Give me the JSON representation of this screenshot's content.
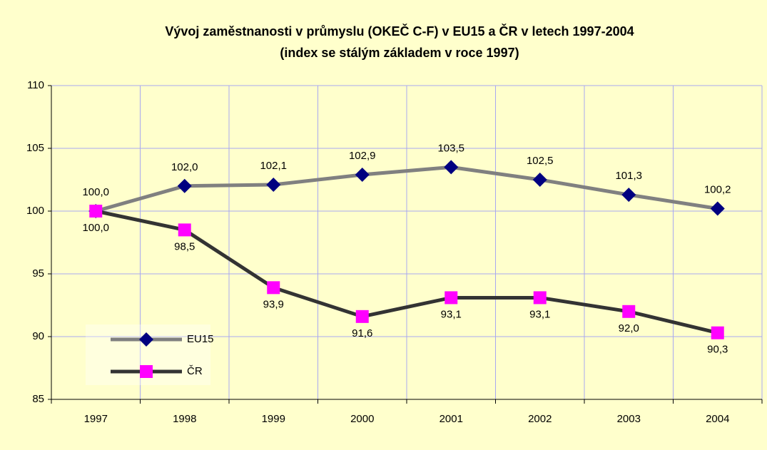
{
  "chart_data": {
    "type": "line",
    "title": "Vývoj zaměstnanosti v průmyslu (OKEČ C-F) v EU15 a ČR v letech 1997-2004",
    "subtitle": "(index se stálým základem v roce 1997)",
    "categories": [
      "1997",
      "1998",
      "1999",
      "2000",
      "2001",
      "2002",
      "2003",
      "2004"
    ],
    "series": [
      {
        "name": "EU15",
        "color": "#000080",
        "line_color": "#808080",
        "marker": "diamond",
        "values": [
          100.0,
          102.0,
          102.1,
          102.9,
          103.5,
          102.5,
          101.3,
          100.2
        ],
        "value_labels": [
          "100,0",
          "102,0",
          "102,1",
          "102,9",
          "103,5",
          "102,5",
          "101,3",
          "100,2"
        ]
      },
      {
        "name": "ČR",
        "color": "#ff00ff",
        "line_color": "#333333",
        "marker": "square",
        "values": [
          100.0,
          98.5,
          93.9,
          91.6,
          93.1,
          93.1,
          92.0,
          90.3
        ],
        "value_labels": [
          "100,0",
          "98,5",
          "93,9",
          "91,6",
          "93,1",
          "93,1",
          "92,0",
          "90,3"
        ]
      }
    ],
    "ylim": [
      85,
      110
    ],
    "yticks": [
      85,
      90,
      95,
      100,
      105,
      110
    ],
    "grid": true,
    "legend": "lower left"
  }
}
